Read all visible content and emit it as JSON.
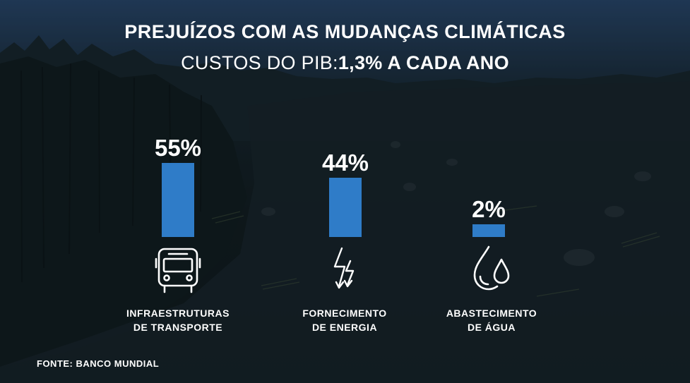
{
  "header": {
    "title": "PREJUÍZOS COM AS MUDANÇAS CLIMÁTICAS",
    "subtitle_prefix": "CUSTOS DO PIB:",
    "subtitle_value": "1,3% A CADA ANO"
  },
  "colors": {
    "bar": "#2f7cc8",
    "text": "#ffffff"
  },
  "chart_data": {
    "type": "bar",
    "title": "PREJUÍZOS COM AS MUDANÇAS CLIMÁTICAS",
    "subtitle": "CUSTOS DO PIB:1,3% A CADA ANO",
    "categories": [
      "INFRAESTRUTURAS DE TRANSPORTE",
      "FORNECIMENTO DE ENERGIA",
      "ABASTECIMENTO DE ÁGUA"
    ],
    "category_lines": [
      [
        "INFRAESTRUTURAS",
        "DE TRANSPORTE"
      ],
      [
        "FORNECIMENTO",
        "DE ENERGIA"
      ],
      [
        "ABASTECIMENTO",
        "DE ÁGUA"
      ]
    ],
    "values": [
      55,
      44,
      2
    ],
    "value_labels": [
      "55%",
      "44%",
      "2%"
    ],
    "icons": [
      "bus-icon",
      "lightning-icon",
      "water-drops-icon"
    ],
    "unit": "%",
    "xlabel": "",
    "ylabel": "",
    "grid": false
  },
  "footer": {
    "source": "FONTE: BANCO MUNDIAL"
  }
}
